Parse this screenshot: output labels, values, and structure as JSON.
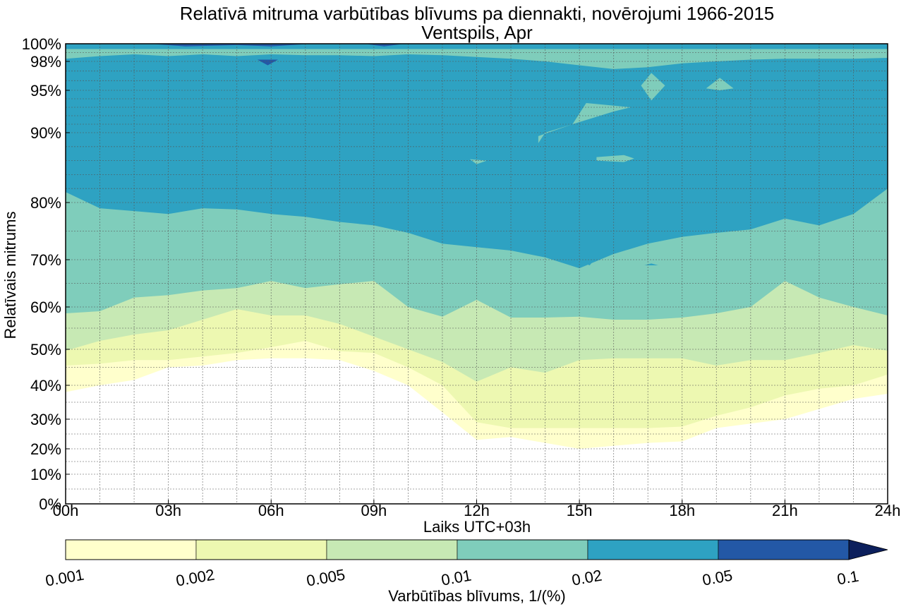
{
  "chart_data": {
    "type": "contourf",
    "title": "Relatīvā mitruma varbūtības blīvums pa diennakti, novērojumi 1966-2015",
    "subtitle": "Ventspils, Apr",
    "xlabel": "Laiks UTC+03h",
    "ylabel": "Relatīvais mitrums",
    "xlim": [
      0,
      24
    ],
    "ylim": [
      0,
      100
    ],
    "grid": true,
    "x_ticks": [
      0,
      3,
      6,
      9,
      12,
      15,
      18,
      21,
      24
    ],
    "x_tick_labels": [
      "00h",
      "03h",
      "06h",
      "09h",
      "12h",
      "15h",
      "18h",
      "21h",
      "24h"
    ],
    "y_ticks": [
      0,
      10,
      20,
      30,
      40,
      50,
      60,
      70,
      80,
      90,
      95,
      98,
      100
    ],
    "y_tick_labels": [
      "0%",
      "10%",
      "20%",
      "30%",
      "40%",
      "50%",
      "60%",
      "70%",
      "80%",
      "90%",
      "95%",
      "98%",
      "100%"
    ],
    "colorbar": {
      "label": "Varbūtības blīvums, 1/(%)",
      "levels": [
        0.001,
        0.002,
        0.005,
        0.01,
        0.02,
        0.05,
        0.1
      ],
      "level_labels": [
        "0.001",
        "0.002",
        "0.005",
        "0.01",
        "0.02",
        "0.05",
        "0.1"
      ],
      "colors": [
        "#ffffcc",
        "#edf8b1",
        "#c7e9b4",
        "#7fcdbb",
        "#2ea2c2",
        "#2358a6",
        "#0c1f5c"
      ],
      "extend": "max"
    },
    "hours": [
      0,
      1,
      2,
      3,
      4,
      5,
      6,
      7,
      8,
      9,
      10,
      11,
      12,
      13,
      14,
      15,
      16,
      17,
      18,
      19,
      20,
      21,
      22,
      23,
      24
    ],
    "regions": [
      {
        "level": 0.001,
        "lower": [
          38,
          40,
          41.5,
          45,
          45.5,
          47,
          47.5,
          47.5,
          47,
          44,
          40,
          32,
          23,
          24,
          22,
          20,
          21,
          22,
          22.5,
          27,
          28.5,
          30,
          33,
          36,
          37.5
        ],
        "upper": [
          100,
          100,
          100,
          100,
          100,
          100,
          100,
          100,
          100,
          100,
          100,
          100,
          100,
          100,
          100,
          100,
          100,
          100,
          100,
          100,
          100,
          100,
          100,
          100,
          100
        ]
      },
      {
        "level": 0.002,
        "lower": [
          45.5,
          46,
          47,
          47,
          48,
          49,
          50.5,
          52,
          49.5,
          49,
          45,
          40,
          29,
          27,
          27,
          27,
          27,
          27,
          27.5,
          31,
          33.5,
          37,
          39,
          40,
          43
        ],
        "upper": [
          99.6,
          99.6,
          99.6,
          99.6,
          99.6,
          99.6,
          99.6,
          99.6,
          99.6,
          99.6,
          99.6,
          99.6,
          99.6,
          99.6,
          99.6,
          99.6,
          99.6,
          99.6,
          99.6,
          99.6,
          99.6,
          99.6,
          99.6,
          99.6,
          99.6
        ]
      },
      {
        "level": 0.005,
        "lower": [
          49.6,
          52,
          53.5,
          54.5,
          57,
          59.5,
          58,
          58,
          56,
          53,
          50,
          46.5,
          41,
          45,
          43.5,
          47,
          47.5,
          47.5,
          47.5,
          45.5,
          47,
          47,
          49,
          51,
          49.6
        ],
        "upper": [
          99.5,
          99.5,
          99.5,
          99.5,
          99.5,
          99.5,
          99.5,
          99.5,
          99.5,
          99.5,
          99.5,
          99.5,
          99.5,
          99.5,
          99.5,
          99.5,
          99.5,
          99.5,
          99.5,
          99.5,
          99.5,
          99.5,
          99.5,
          99.5,
          99.5
        ]
      },
      {
        "level": 0.01,
        "lower": [
          58.5,
          59,
          62,
          62.5,
          63.5,
          64,
          65.5,
          64,
          64.8,
          65.5,
          60,
          57.7,
          61.5,
          57.5,
          57.5,
          57.7,
          57,
          57,
          57.5,
          58.5,
          60,
          65.5,
          62,
          60,
          58
        ],
        "upper": [
          99.4,
          99.4,
          99.4,
          99.4,
          99.4,
          99.4,
          99.4,
          99.4,
          99.4,
          99.4,
          99.4,
          99.4,
          99.4,
          99.4,
          99.4,
          99.4,
          99.4,
          99.4,
          99.4,
          99.4,
          99.4,
          99.4,
          99.4,
          99.4,
          99.4
        ]
      },
      {
        "level": 0.02,
        "lower": [
          81.5,
          79,
          78.5,
          78,
          79,
          78.8,
          78,
          77.5,
          76.6,
          76,
          74.7,
          72.8,
          72.2,
          71.6,
          70.4,
          68.2,
          71,
          72.8,
          74,
          74.7,
          75.3,
          77.2,
          76,
          78,
          82
        ],
        "upper": [
          98.3,
          98.6,
          98.8,
          98.6,
          98.8,
          98.6,
          98.8,
          98.7,
          98.7,
          98.6,
          98.8,
          98.7,
          98.5,
          98.3,
          98.0,
          97.6,
          97.2,
          97.4,
          97.8,
          98.0,
          98.2,
          98.3,
          98.3,
          98.3,
          98.4
        ]
      },
      {
        "level": 0.02,
        "lower": [
          99.4,
          99.4,
          99.4,
          99.4,
          99.4,
          99.4,
          99.4,
          99.4,
          99.4,
          99.4,
          99.4,
          99.4,
          99.4,
          99.4,
          99.4,
          99.4,
          99.4,
          99.4,
          99.4,
          99.4,
          99.4,
          99.4,
          99.4,
          99.4,
          99.4
        ],
        "upper": [
          100,
          100,
          100,
          100,
          100,
          100,
          100,
          100,
          100,
          100,
          100,
          100,
          100,
          100,
          100,
          100,
          100,
          100,
          100,
          100,
          100,
          100,
          100,
          100,
          100
        ]
      }
    ],
    "islands": [
      {
        "level": 0.01,
        "points": [
          [
            13.8,
            88.5
          ],
          [
            14,
            90
          ],
          [
            16,
            92.5
          ],
          [
            16.5,
            93
          ],
          [
            15.2,
            93.5
          ],
          [
            14.8,
            91
          ],
          [
            13.8,
            89.5
          ]
        ]
      },
      {
        "level": 0.01,
        "points": [
          [
            15.5,
            86.5
          ],
          [
            16.3,
            86.8
          ],
          [
            16.6,
            86.3
          ],
          [
            16.3,
            85.8
          ],
          [
            15.5,
            86
          ]
        ]
      },
      {
        "level": 0.01,
        "points": [
          [
            11.8,
            86.2
          ],
          [
            12,
            85.5
          ],
          [
            12.3,
            86
          ]
        ]
      },
      {
        "level": 0.01,
        "points": [
          [
            16.8,
            95.5
          ],
          [
            17.1,
            96.8
          ],
          [
            17.5,
            95.5
          ],
          [
            17.1,
            93.8
          ]
        ]
      },
      {
        "level": 0.01,
        "points": [
          [
            18.7,
            95.2
          ],
          [
            19.1,
            96.3
          ],
          [
            19.5,
            95.2
          ],
          [
            19.1,
            95
          ]
        ]
      },
      {
        "level": 0.02,
        "points": [
          [
            14.8,
            70.2
          ],
          [
            15.5,
            70.5
          ],
          [
            15.3,
            68.8
          ]
        ]
      },
      {
        "level": 0.02,
        "points": [
          [
            16.9,
            68.8
          ],
          [
            17.1,
            69.2
          ],
          [
            17.3,
            68.8
          ]
        ]
      },
      {
        "level": 0.05,
        "points": [
          [
            5.6,
            98.2
          ],
          [
            6.2,
            98.2
          ],
          [
            5.9,
            97.6
          ]
        ]
      },
      {
        "level": 0.05,
        "points": [
          [
            2.6,
            99.95
          ],
          [
            3.5,
            99.7
          ],
          [
            5,
            99.85
          ],
          [
            6,
            99.7
          ],
          [
            7,
            99.95
          ]
        ]
      },
      {
        "level": 0.05,
        "points": [
          [
            8.8,
            99.95
          ],
          [
            9.3,
            99.7
          ],
          [
            9.8,
            99.95
          ]
        ]
      }
    ]
  }
}
